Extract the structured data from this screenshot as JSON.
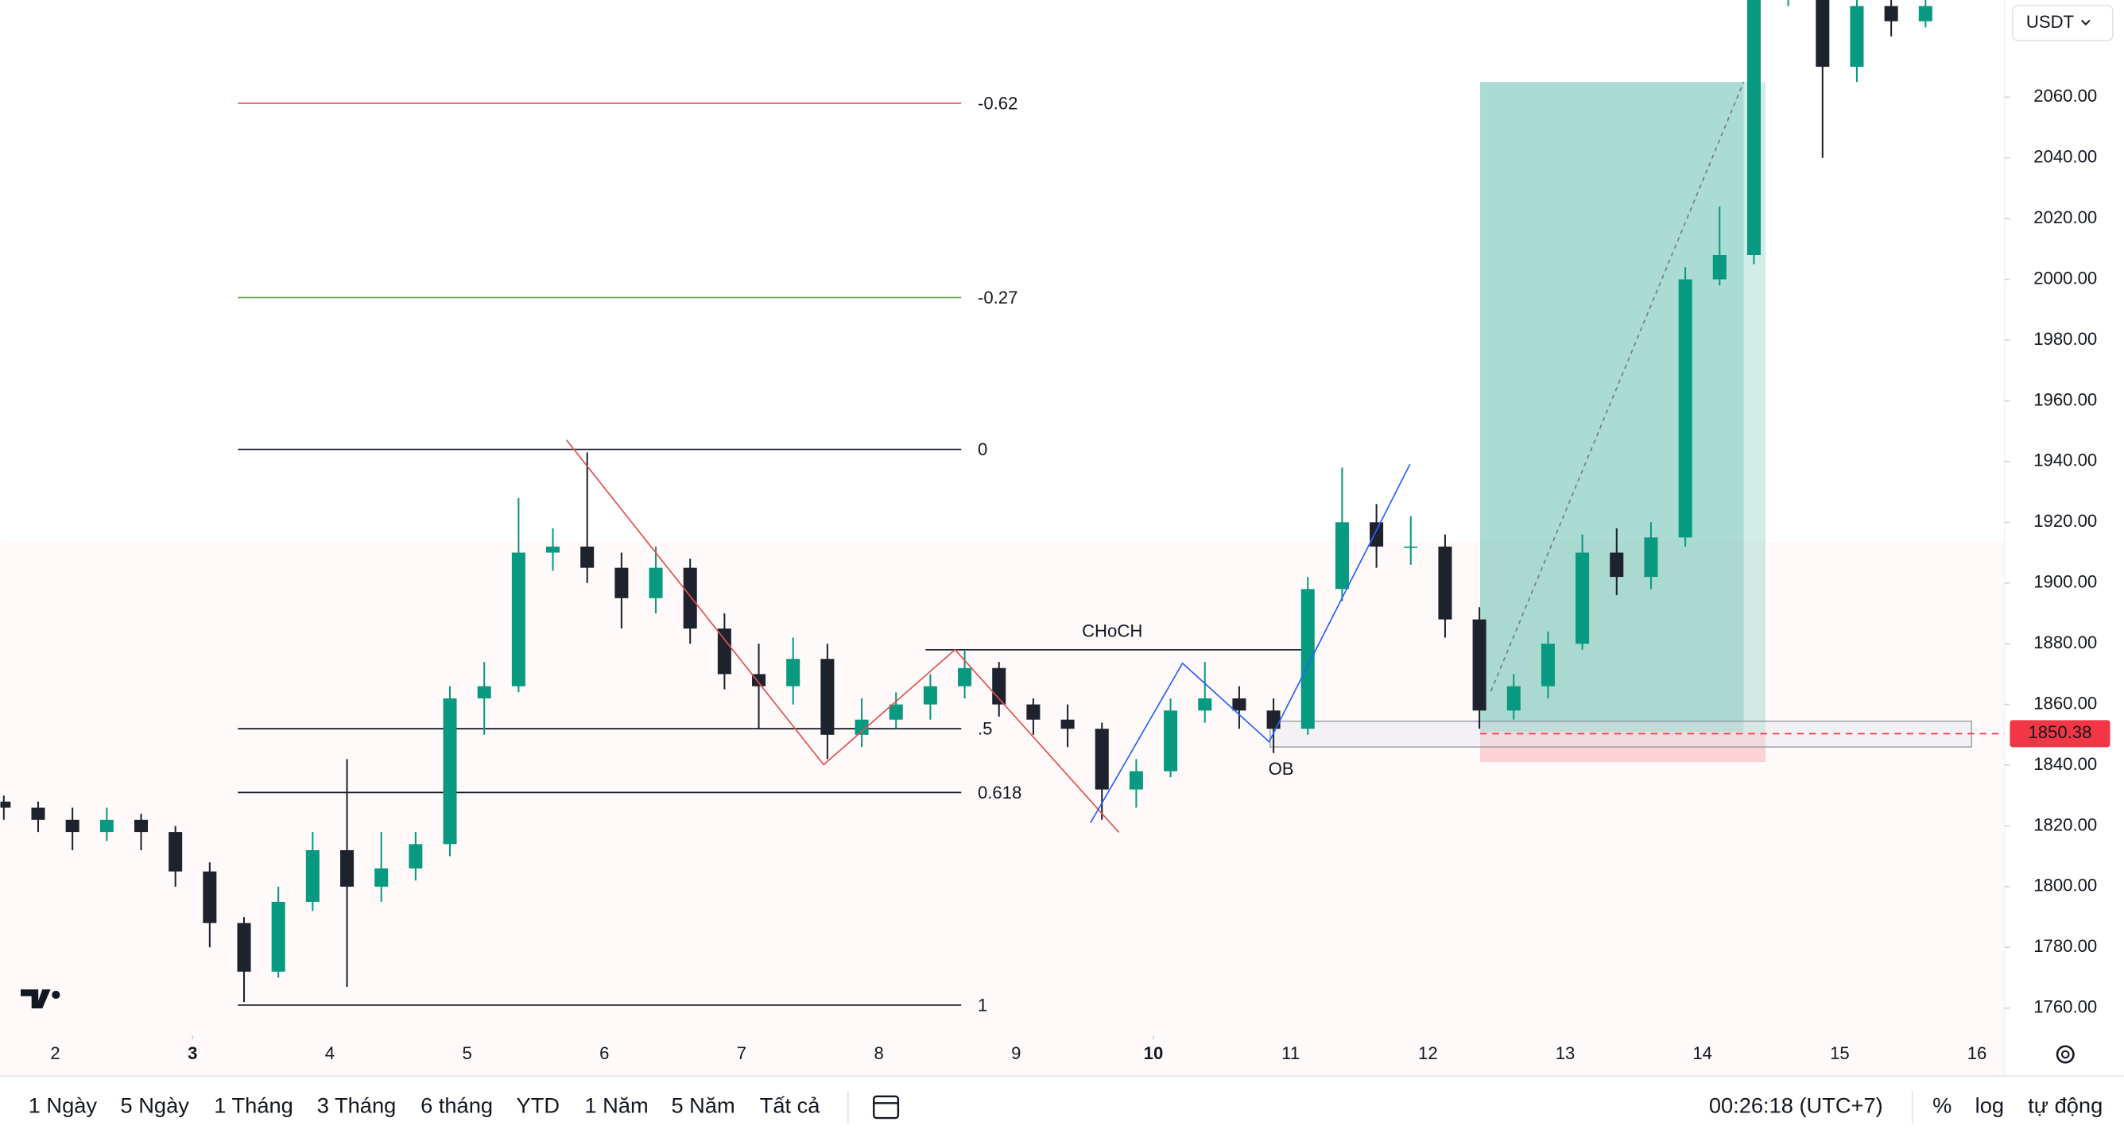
{
  "chart_data": {
    "type": "candlestick",
    "currency": "USDT",
    "x": [
      1.625,
      1.875,
      2.125,
      2.375,
      2.625,
      2.875,
      3.125,
      3.375,
      3.625,
      3.875,
      4.125,
      4.375,
      4.625,
      4.875,
      5.125,
      5.375,
      5.625,
      5.875,
      6.125,
      6.375,
      6.625,
      6.875,
      7.125,
      7.375,
      7.625,
      7.875,
      8.125,
      8.375,
      8.625,
      8.875,
      9.125,
      9.375,
      9.625,
      9.875,
      10.125,
      10.375,
      10.625,
      10.875,
      11.125,
      11.375,
      11.625,
      11.875,
      12.125,
      12.375,
      12.625,
      12.875,
      13.125,
      13.375,
      13.625,
      13.875,
      14.125,
      14.375,
      14.625,
      14.875,
      15.125,
      15.375,
      15.625
    ],
    "open": [
      1828,
      1826,
      1822,
      1818,
      1822,
      1818,
      1805,
      1788,
      1772,
      1795,
      1812,
      1800,
      1806,
      1814,
      1862,
      1866,
      1910,
      1912,
      1905,
      1895,
      1905,
      1885,
      1870,
      1866,
      1875,
      1850,
      1855,
      1860,
      1866,
      1872,
      1860,
      1855,
      1852,
      1832,
      1838,
      1858,
      1862,
      1858,
      1852,
      1898,
      1920,
      1912,
      1912,
      1888,
      1858,
      1866,
      1880,
      1910,
      1902,
      1915,
      2000,
      2008,
      2095,
      2110,
      2070,
      2090,
      2085
    ],
    "high": [
      1830,
      1828,
      1826,
      1826,
      1824,
      1820,
      1808,
      1790,
      1800,
      1818,
      1842,
      1818,
      1818,
      1866,
      1874,
      1928,
      1918,
      1943,
      1910,
      1912,
      1908,
      1890,
      1880,
      1882,
      1880,
      1862,
      1864,
      1870,
      1878,
      1874,
      1862,
      1860,
      1854,
      1842,
      1862,
      1874,
      1866,
      1862,
      1902,
      1938,
      1926,
      1922,
      1916,
      1892,
      1870,
      1884,
      1916,
      1918,
      1920,
      2004,
      2024,
      2100,
      2120,
      2112,
      2095,
      2094,
      2094
    ],
    "low": [
      1822,
      1818,
      1812,
      1815,
      1812,
      1800,
      1780,
      1762,
      1770,
      1792,
      1767,
      1795,
      1802,
      1810,
      1850,
      1864,
      1904,
      1900,
      1885,
      1890,
      1880,
      1865,
      1852,
      1860,
      1842,
      1846,
      1852,
      1855,
      1862,
      1856,
      1850,
      1846,
      1822,
      1826,
      1836,
      1854,
      1852,
      1844,
      1850,
      1894,
      1905,
      1906,
      1882,
      1852,
      1855,
      1862,
      1878,
      1896,
      1898,
      1912,
      1998,
      2005,
      2090,
      2040,
      2065,
      2080,
      2083
    ],
    "close": [
      1826,
      1822,
      1818,
      1822,
      1818,
      1805,
      1788,
      1772,
      1795,
      1812,
      1800,
      1806,
      1814,
      1862,
      1866,
      1910,
      1912,
      1905,
      1895,
      1905,
      1885,
      1870,
      1866,
      1875,
      1850,
      1855,
      1860,
      1866,
      1872,
      1860,
      1855,
      1852,
      1832,
      1838,
      1858,
      1862,
      1858,
      1852,
      1898,
      1920,
      1912,
      1912,
      1888,
      1858,
      1866,
      1880,
      1910,
      1902,
      1915,
      2000,
      2008,
      2095,
      2110,
      2070,
      2090,
      2085,
      2090
    ],
    "up_color": "#089981",
    "down_color": "#1e222d",
    "xlim": [
      1.6,
      16.2
    ],
    "xticks": [
      2,
      3,
      4,
      5,
      6,
      7,
      8,
      9,
      10,
      11,
      12,
      13,
      14,
      15,
      16
    ],
    "xticks_major": [
      3,
      10
    ],
    "ylim": [
      1751,
      2092
    ],
    "yticks": [
      {
        "value": 1760,
        "label": "1760.00"
      },
      {
        "value": 1780,
        "label": "1780.00"
      },
      {
        "value": 1800,
        "label": "1800.00"
      },
      {
        "value": 1820,
        "label": "1820.00"
      },
      {
        "value": 1840,
        "label": "1840.00"
      },
      {
        "value": 1860,
        "label": "1860.00"
      },
      {
        "value": 1880,
        "label": "1880.00"
      },
      {
        "value": 1900,
        "label": "1900.00"
      },
      {
        "value": 1920,
        "label": "1920.00"
      },
      {
        "value": 1940,
        "label": "1940.00"
      },
      {
        "value": 1960,
        "label": "1960.00"
      },
      {
        "value": 1980,
        "label": "1980.00"
      },
      {
        "value": 2000,
        "label": "2000.00"
      },
      {
        "value": 2020,
        "label": "2020.00"
      },
      {
        "value": 2040,
        "label": "2040.00"
      },
      {
        "value": 2060,
        "label": "2060.00"
      }
    ],
    "current_price": 1850.38,
    "fib_levels": [
      {
        "label": "-0.62",
        "value": 2058,
        "color": "#e05252"
      },
      {
        "label": "-0.27",
        "value": 1994,
        "color": "#6aa84f"
      },
      {
        "label": "0",
        "value": 1944,
        "color": "#131722"
      },
      {
        "label": ".5",
        "value": 1852,
        "color": "#131722"
      },
      {
        "label": "0.618",
        "value": 1831,
        "color": "#131722"
      },
      {
        "label": "1",
        "value": 1761,
        "color": "#131722"
      }
    ],
    "choch": {
      "label": "CHoCH",
      "value": 1878
    },
    "order_block": {
      "label": "OB",
      "top": 1854.5,
      "bottom": 1846
    },
    "position": {
      "target": 2065,
      "entry": 1851,
      "stop": 1841
    }
  },
  "toolbar": {
    "ranges": [
      "1 Ngày",
      "5 Ngày",
      "1 Tháng",
      "3 Tháng",
      "6 tháng",
      "YTD",
      "1 Năm",
      "5 Năm",
      "Tất cả"
    ],
    "clock": "00:26:18 (UTC+7)",
    "percent": "%",
    "log": "log",
    "auto": "tự động"
  }
}
